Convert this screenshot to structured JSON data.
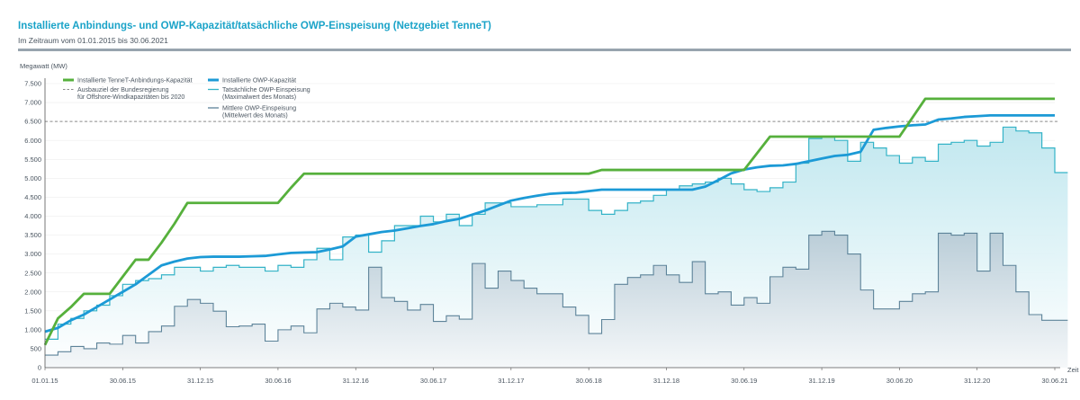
{
  "header": {
    "title": "Installierte Anbindungs- und OWP-Kapazität/tatsächliche OWP-Einspeisung (Netzgebiet TenneT)",
    "subtitle": "Im Zeitraum vom 01.01.2015 bis 30.06.2021"
  },
  "colors": {
    "green": "#56b03c",
    "blue": "#1c9ad6",
    "teal": "#34b3c7",
    "teal_fill_top": "#bde6ee",
    "slate": "#5d8399",
    "slate_fill_top": "#b8cbd6",
    "dash": "#8a8a8a",
    "axis": "#555555",
    "rule": "#98a4ae"
  },
  "chart_data": {
    "type": "line",
    "ylabel": "Megawatt (MW)",
    "xlabel": "Zeit",
    "ylim": [
      0,
      7500
    ],
    "yticks": [
      0,
      500,
      1000,
      1500,
      2000,
      2500,
      3000,
      3500,
      4000,
      4500,
      5000,
      5500,
      6000,
      6500,
      7000,
      7500
    ],
    "ytick_labels": [
      "0",
      "500",
      "1.000",
      "1.500",
      "2.000",
      "2.500",
      "3.000",
      "3.500",
      "4.000",
      "4.500",
      "5.000",
      "5.500",
      "6.000",
      "6.500",
      "7.000",
      "7.500"
    ],
    "xticks": [
      "01.01.15",
      "30.06.15",
      "31.12.15",
      "30.06.16",
      "31.12.16",
      "30.06.17",
      "31.12.17",
      "30.06.18",
      "31.12.18",
      "30.06.19",
      "31.12.19",
      "30.06.20",
      "31.12.20",
      "30.06.21"
    ],
    "x_unit": "months since 01.01.2015 (0 = 01.01.15, 78 = 30.06.21)",
    "legend": [
      {
        "key": "anbindung",
        "label": "Installierte TenneT-Anbindungs-Kapazität"
      },
      {
        "key": "ausbauziel",
        "label": "Ausbauziel der Bundesregierung",
        "label2": "für Offshore-Windkapazitäten bis 2020"
      },
      {
        "key": "owp",
        "label": "Installierte OWP-Kapazität"
      },
      {
        "key": "max",
        "label": "Tatsächliche OWP-Einspeisung",
        "label2": "(Maximalwert des Monats)"
      },
      {
        "key": "mean",
        "label": "Mittlere OWP-Einspeisung",
        "label2": "(Mittelwert des Monats)"
      }
    ],
    "series": [
      {
        "name": "Installierte TenneT-Anbindungs-Kapazität",
        "key": "anbindung",
        "shape": "line",
        "points": [
          [
            0,
            600
          ],
          [
            1,
            1300
          ],
          [
            2,
            1600
          ],
          [
            3,
            1950
          ],
          [
            4,
            1950
          ],
          [
            5,
            1950
          ],
          [
            6,
            2400
          ],
          [
            7,
            2850
          ],
          [
            8,
            2850
          ],
          [
            9,
            3300
          ],
          [
            10,
            3800
          ],
          [
            11,
            4350
          ],
          [
            12,
            4350
          ],
          [
            18,
            4350
          ],
          [
            19,
            4750
          ],
          [
            20,
            5120
          ],
          [
            26,
            5120
          ],
          [
            36,
            5120
          ],
          [
            42,
            5120
          ],
          [
            43,
            5220
          ],
          [
            54,
            5220
          ],
          [
            55,
            5660
          ],
          [
            56,
            6100
          ],
          [
            66,
            6100
          ],
          [
            67,
            6600
          ],
          [
            68,
            7100
          ],
          [
            78,
            7100
          ]
        ]
      },
      {
        "name": "Ausbauziel der Bundesregierung für Offshore-Windkapazitäten bis 2020",
        "key": "ausbauziel",
        "shape": "dashed",
        "value": 6500
      },
      {
        "name": "Installierte OWP-Kapazität",
        "key": "owp",
        "shape": "line",
        "points": [
          [
            0,
            950
          ],
          [
            1,
            1050
          ],
          [
            2,
            1250
          ],
          [
            3,
            1400
          ],
          [
            4,
            1600
          ],
          [
            5,
            1800
          ],
          [
            6,
            2000
          ],
          [
            7,
            2200
          ],
          [
            8,
            2450
          ],
          [
            9,
            2700
          ],
          [
            10,
            2800
          ],
          [
            11,
            2880
          ],
          [
            12,
            2920
          ],
          [
            13,
            2930
          ],
          [
            14,
            2930
          ],
          [
            15,
            2930
          ],
          [
            16,
            2940
          ],
          [
            17,
            2950
          ],
          [
            18,
            2990
          ],
          [
            19,
            3030
          ],
          [
            20,
            3040
          ],
          [
            21,
            3050
          ],
          [
            22,
            3120
          ],
          [
            23,
            3200
          ],
          [
            24,
            3460
          ],
          [
            25,
            3520
          ],
          [
            26,
            3580
          ],
          [
            27,
            3620
          ],
          [
            28,
            3680
          ],
          [
            29,
            3740
          ],
          [
            30,
            3790
          ],
          [
            31,
            3870
          ],
          [
            32,
            3930
          ],
          [
            33,
            4040
          ],
          [
            34,
            4150
          ],
          [
            35,
            4280
          ],
          [
            36,
            4410
          ],
          [
            37,
            4480
          ],
          [
            38,
            4540
          ],
          [
            39,
            4590
          ],
          [
            40,
            4610
          ],
          [
            41,
            4620
          ],
          [
            42,
            4660
          ],
          [
            43,
            4700
          ],
          [
            44,
            4700
          ],
          [
            50,
            4700
          ],
          [
            51,
            4780
          ],
          [
            52,
            4950
          ],
          [
            53,
            5130
          ],
          [
            54,
            5230
          ],
          [
            55,
            5290
          ],
          [
            56,
            5330
          ],
          [
            57,
            5340
          ],
          [
            58,
            5380
          ],
          [
            59,
            5450
          ],
          [
            60,
            5520
          ],
          [
            61,
            5590
          ],
          [
            62,
            5620
          ],
          [
            63,
            5700
          ],
          [
            64,
            6280
          ],
          [
            65,
            6330
          ],
          [
            66,
            6370
          ],
          [
            67,
            6400
          ],
          [
            68,
            6420
          ],
          [
            69,
            6550
          ],
          [
            70,
            6580
          ],
          [
            71,
            6620
          ],
          [
            72,
            6640
          ],
          [
            73,
            6660
          ],
          [
            74,
            6660
          ],
          [
            78,
            6660
          ]
        ]
      },
      {
        "name": "Tatsächliche OWP-Einspeisung (Maximalwert des Monats)",
        "key": "max",
        "shape": "step",
        "values": [
          750,
          1150,
          1300,
          1500,
          1650,
          1900,
          2200,
          2300,
          2350,
          2450,
          2650,
          2650,
          2550,
          2650,
          2700,
          2650,
          2650,
          2550,
          2700,
          2650,
          2850,
          3150,
          2850,
          3450,
          3500,
          3050,
          3350,
          3750,
          3750,
          4000,
          3850,
          4050,
          3750,
          4050,
          4350,
          4350,
          4250,
          4250,
          4300,
          4300,
          4450,
          4450,
          4150,
          4050,
          4150,
          4350,
          4400,
          4550,
          4700,
          4800,
          4850,
          4900,
          5000,
          4850,
          4700,
          4650,
          4750,
          4900,
          5400,
          6050,
          6100,
          6000,
          5450,
          5950,
          5800,
          5600,
          5400,
          5550,
          5450,
          5900,
          5950,
          6000,
          5850,
          5950,
          6350,
          6250,
          6200,
          5800,
          5150
        ]
      },
      {
        "name": "Mittlere OWP-Einspeisung (Mittelwert des Monats)",
        "key": "mean",
        "shape": "step",
        "values": [
          330,
          420,
          560,
          500,
          650,
          620,
          850,
          650,
          950,
          1100,
          1620,
          1800,
          1700,
          1490,
          1080,
          1100,
          1150,
          700,
          1000,
          1100,
          920,
          1550,
          1700,
          1600,
          1520,
          2650,
          1850,
          1750,
          1520,
          1670,
          1220,
          1370,
          1280,
          2750,
          2100,
          2550,
          2300,
          2100,
          1950,
          1950,
          1600,
          1380,
          900,
          1270,
          2200,
          2380,
          2450,
          2700,
          2450,
          2250,
          2800,
          1950,
          2000,
          1650,
          1850,
          1700,
          2400,
          2650,
          2600,
          3500,
          3600,
          3500,
          3000,
          2050,
          1550,
          1550,
          1750,
          1950,
          2000,
          3550,
          3500,
          3550,
          2550,
          3550,
          2700,
          2000,
          1400,
          1250,
          1250
        ]
      }
    ]
  }
}
